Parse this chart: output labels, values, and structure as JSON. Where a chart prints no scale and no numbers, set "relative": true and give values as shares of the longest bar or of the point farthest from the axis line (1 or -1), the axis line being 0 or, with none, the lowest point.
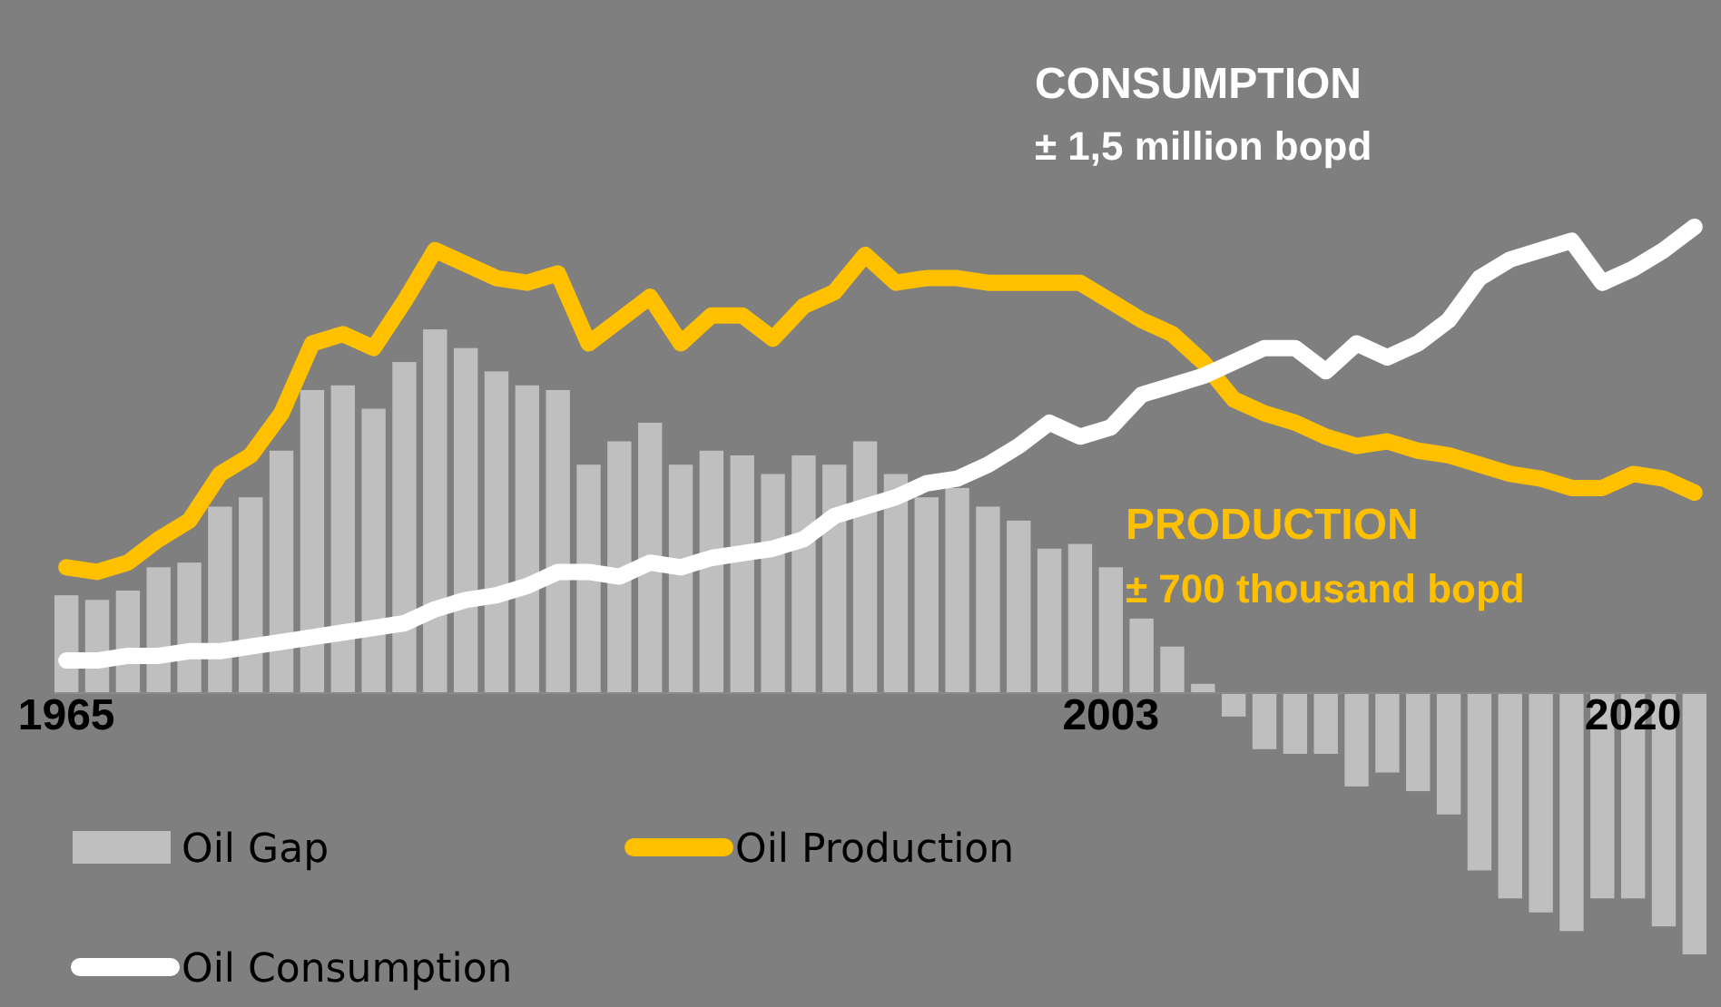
{
  "chart_data": {
    "type": "bar",
    "relative": true,
    "legend": "bottom",
    "categories": [
      "1965",
      null,
      null,
      null,
      null,
      null,
      null,
      null,
      null,
      null,
      null,
      null,
      null,
      null,
      null,
      null,
      null,
      null,
      null,
      null,
      null,
      null,
      null,
      null,
      null,
      null,
      null,
      null,
      null,
      null,
      null,
      null,
      null,
      null,
      "2003",
      null,
      null,
      null,
      null,
      null,
      null,
      null,
      null,
      null,
      null,
      null,
      null,
      null,
      null,
      null,
      null,
      "2020",
      null,
      null
    ],
    "series": [
      {
        "name": "Oil Gap",
        "type": "bar",
        "color": "#bfbfbf",
        "values": [
          0.21,
          0.2,
          0.22,
          0.27,
          0.28,
          0.4,
          0.42,
          0.52,
          0.65,
          0.66,
          0.61,
          0.71,
          0.78,
          0.74,
          0.69,
          0.66,
          0.65,
          0.49,
          0.54,
          0.58,
          0.49,
          0.52,
          0.51,
          0.47,
          0.51,
          0.49,
          0.54,
          0.47,
          0.42,
          0.44,
          0.4,
          0.37,
          0.31,
          0.32,
          0.27,
          0.16,
          0.1,
          0.02,
          -0.05,
          -0.12,
          -0.13,
          -0.13,
          -0.2,
          -0.17,
          -0.21,
          -0.26,
          -0.38,
          -0.44,
          -0.47,
          -0.51,
          -0.44,
          -0.44,
          -0.5,
          -0.56
        ]
      },
      {
        "name": "Oil Production",
        "type": "line",
        "color": "#ffc000",
        "values": [
          0.27,
          0.26,
          0.28,
          0.33,
          0.37,
          0.47,
          0.51,
          0.6,
          0.75,
          0.77,
          0.74,
          0.84,
          0.95,
          0.92,
          0.89,
          0.88,
          0.9,
          0.75,
          0.8,
          0.85,
          0.75,
          0.81,
          0.81,
          0.76,
          0.83,
          0.86,
          0.94,
          0.88,
          0.89,
          0.89,
          0.88,
          0.88,
          0.88,
          0.88,
          0.84,
          0.8,
          0.77,
          0.71,
          0.63,
          0.6,
          0.58,
          0.55,
          0.53,
          0.54,
          0.52,
          0.51,
          0.49,
          0.47,
          0.46,
          0.44,
          0.44,
          0.47,
          0.46,
          0.43
        ]
      },
      {
        "name": "Oil Consumption",
        "type": "line",
        "color": "#ffffff",
        "values": [
          0.07,
          0.07,
          0.08,
          0.08,
          0.09,
          0.09,
          0.1,
          0.11,
          0.12,
          0.13,
          0.14,
          0.15,
          0.18,
          0.2,
          0.21,
          0.23,
          0.26,
          0.26,
          0.25,
          0.28,
          0.27,
          0.29,
          0.3,
          0.31,
          0.33,
          0.38,
          0.4,
          0.42,
          0.45,
          0.46,
          0.49,
          0.53,
          0.58,
          0.55,
          0.57,
          0.64,
          0.66,
          0.68,
          0.71,
          0.74,
          0.74,
          0.69,
          0.75,
          0.72,
          0.75,
          0.8,
          0.89,
          0.93,
          0.95,
          0.97,
          0.88,
          0.91,
          0.95,
          1.0
        ]
      }
    ],
    "annotations": [
      "CONSUMPTION",
      "± 1,5 million bopd",
      "PRODUCTION",
      "± 700 thousand bopd"
    ]
  }
}
